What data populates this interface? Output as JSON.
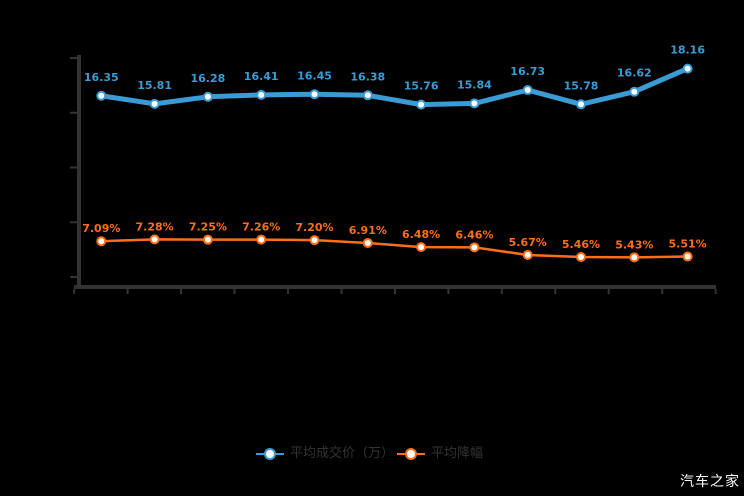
{
  "watermark": "汽车之家",
  "colors": {
    "background": "#000000",
    "blue_series": "#3a9bd5",
    "orange_series": "#ff6e17",
    "axis": "#333333",
    "legend_text": "#333333",
    "marker_fill": "#ffffff",
    "corner_mark": "#ee3124",
    "watermark_text": "#fdfdfd"
  },
  "legend": {
    "items": [
      {
        "label": "平均成交价（万）",
        "color": "#3a9bd5"
      },
      {
        "label": "平均降幅",
        "color": "#ff6e17"
      }
    ]
  },
  "chart_data": {
    "type": "line",
    "x_point_count": 12,
    "x_tick_count": 13,
    "x_axis_labels_visible": false,
    "y_axis_labels_visible": false,
    "grid": false,
    "legend_position": "bottom",
    "series": [
      {
        "name": "平均成交价（万）",
        "color": "#3a9bd5",
        "values": [
          16.35,
          15.81,
          16.28,
          16.41,
          16.45,
          16.38,
          15.76,
          15.84,
          16.73,
          15.78,
          16.62,
          18.16
        ],
        "labels": [
          "16.35",
          "15.81",
          "16.28",
          "16.41",
          "16.45",
          "16.38",
          "15.76",
          "15.84",
          "16.73",
          "15.78",
          "16.62",
          "18.16"
        ]
      },
      {
        "name": "平均降幅",
        "color": "#ff6e17",
        "values": [
          7.09,
          7.28,
          7.25,
          7.26,
          7.2,
          6.91,
          6.48,
          6.46,
          5.67,
          5.46,
          5.43,
          5.51
        ],
        "labels": [
          "7.09%",
          "7.28%",
          "7.25%",
          "7.26%",
          "7.20%",
          "6.91%",
          "6.48%",
          "6.46%",
          "5.67%",
          "5.46%",
          "5.43%",
          "5.51%"
        ]
      }
    ]
  }
}
